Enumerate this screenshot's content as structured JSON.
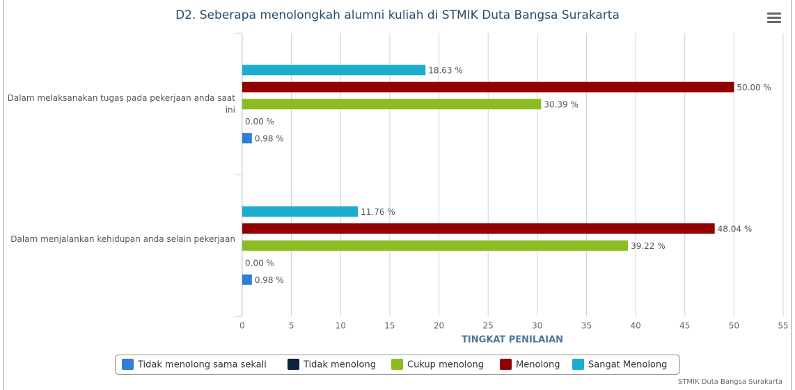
{
  "chart_data": {
    "type": "bar",
    "orientation": "horizontal",
    "title": "D2. Seberapa menolongkah alumni kuliah di STMIK Duta Bangsa Surakarta",
    "categories": [
      "Dalam melaksanakan tugas pada pekerjaan anda saat ini",
      "Dalam menjalankan kehidupan anda selain pekerjaan"
    ],
    "series": [
      {
        "name": "Tidak menolong sama sekali",
        "color": "#2f7ed8",
        "values": [
          0.98,
          0.98
        ],
        "value_labels": [
          "0.98 %",
          "0.98 %"
        ]
      },
      {
        "name": "Tidak menolong",
        "color": "#0d233a",
        "values": [
          0,
          0
        ],
        "value_labels": [
          "0.00 %",
          "0.00 %"
        ]
      },
      {
        "name": "Cukup menolong",
        "color": "#8bbc21",
        "values": [
          30.39,
          39.22
        ],
        "value_labels": [
          "30.39 %",
          "39.22 %"
        ]
      },
      {
        "name": "Menolong",
        "color": "#910000",
        "values": [
          50,
          48.04
        ],
        "value_labels": [
          "50.00 %",
          "48.04 %"
        ]
      },
      {
        "name": "Sangat Menolong",
        "color": "#1aadce",
        "values": [
          18.63,
          11.76
        ],
        "value_labels": [
          "18.63 %",
          "11.76 %"
        ]
      }
    ],
    "x_label": "TINGKAT PENILAIAN",
    "xlim": [
      0,
      55
    ],
    "xticks": [
      0,
      5,
      10,
      15,
      20,
      25,
      30,
      35,
      40,
      45,
      50,
      55
    ],
    "grid": true,
    "legend": "bottom",
    "credits": "STMIK Duta Bangsa Surakarta"
  }
}
